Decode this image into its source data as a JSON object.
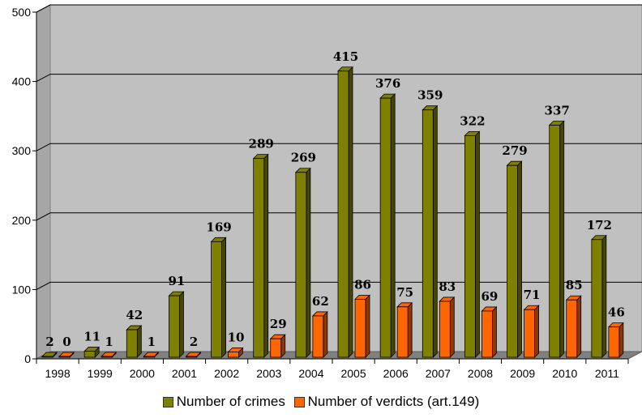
{
  "chart_data": {
    "type": "bar",
    "categories": [
      "1998",
      "1999",
      "2000",
      "2001",
      "2002",
      "2003",
      "2004",
      "2005",
      "2006",
      "2007",
      "2008",
      "2009",
      "2010",
      "2011"
    ],
    "series": [
      {
        "name": "Number of crimes",
        "values": [
          2,
          11,
          42,
          91,
          169,
          289,
          269,
          415,
          376,
          359,
          322,
          279,
          337,
          172
        ],
        "color": "#808000"
      },
      {
        "name": "Number of verdicts (art.149)",
        "values": [
          0,
          1,
          1,
          2,
          10,
          29,
          62,
          86,
          75,
          83,
          69,
          71,
          85,
          46
        ],
        "color": "#ff6600"
      }
    ],
    "ylim": [
      0,
      500
    ],
    "yticks": [
      "0",
      "100",
      "200",
      "300",
      "400",
      "500"
    ],
    "grid": true,
    "legend_position": "bottom",
    "title": "",
    "xlabel": "",
    "ylabel": ""
  }
}
